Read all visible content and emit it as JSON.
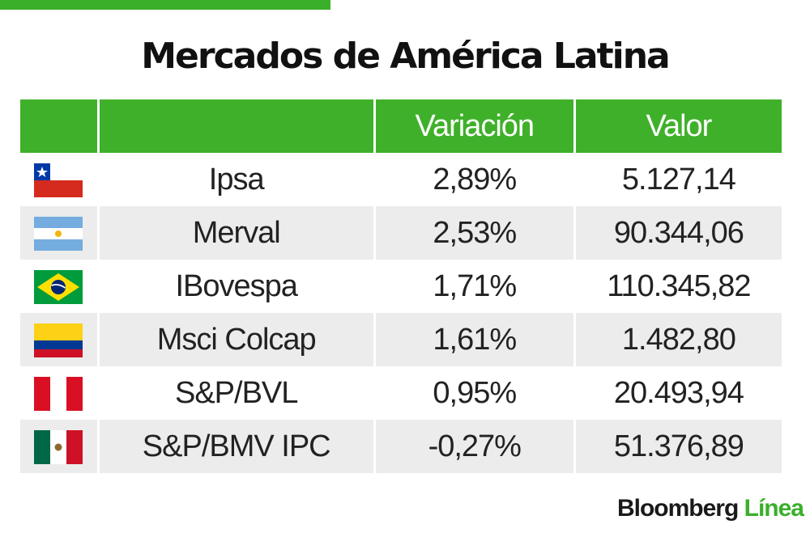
{
  "title": "Mercados de América Latina",
  "table": {
    "headers": [
      "",
      "",
      "Variación",
      "Valor"
    ],
    "rows": [
      {
        "flag": "chile-flag-icon",
        "name": "Ipsa",
        "variation": "2,89%",
        "value": "5.127,14"
      },
      {
        "flag": "argentina-flag-icon",
        "name": "Merval",
        "variation": "2,53%",
        "value": "90.344,06"
      },
      {
        "flag": "brazil-flag-icon",
        "name": "IBovespa",
        "variation": "1,71%",
        "value": "110.345,82"
      },
      {
        "flag": "colombia-flag-icon",
        "name": "Msci Colcap",
        "variation": "1,61%",
        "value": "1.482,80"
      },
      {
        "flag": "peru-flag-icon",
        "name": "S&P/BVL",
        "variation": "0,95%",
        "value": "20.493,94"
      },
      {
        "flag": "mexico-flag-icon",
        "name": "S&P/BMV IPC",
        "variation": "-0,27%",
        "value": "51.376,89"
      }
    ]
  },
  "brand": {
    "part1": "Bloomberg",
    "part2": "Línea"
  },
  "colors": {
    "accent": "#3fb02a",
    "row_alt": "#ececec"
  }
}
